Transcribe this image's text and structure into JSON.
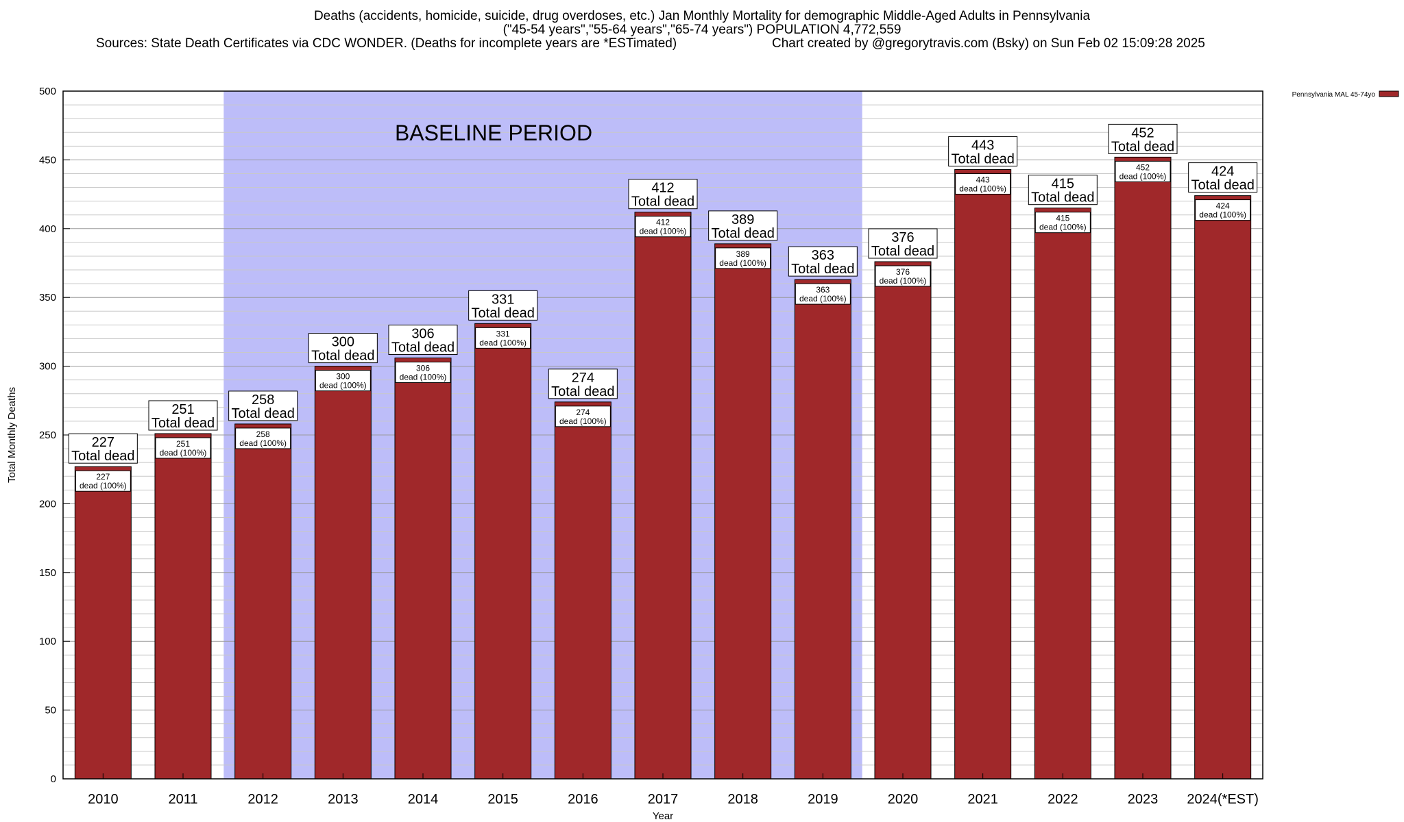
{
  "header": {
    "title_line1": "Deaths (accidents, homicide, suicide, drug overdoses, etc.) Jan Monthly Mortality for demographic Middle-Aged Adults in Pennsylvania",
    "title_line2": "(\"45-54 years\",\"55-64 years\",\"65-74 years\") POPULATION 4,772,559",
    "sources": "Sources: State Death Certificates via CDC WONDER. (Deaths for incomplete years are *ESTimated)",
    "credit": "Chart created by @gregorytravis.com (Bsky) on Sun Feb 02 15:09:28 2025"
  },
  "chart_data": {
    "type": "bar",
    "title": "Deaths (accidents, homicide, suicide, drug overdoses, etc.) Jan Monthly Mortality for demographic Middle-Aged Adults in Pennsylvania",
    "xlabel": "Year",
    "ylabel": "Total Monthly Deaths",
    "ylim": [
      0,
      500
    ],
    "yticks": [
      0,
      50,
      100,
      150,
      200,
      250,
      300,
      350,
      400,
      450,
      500
    ],
    "grid": true,
    "categories": [
      "2010",
      "2011",
      "2012",
      "2013",
      "2014",
      "2015",
      "2016",
      "2017",
      "2018",
      "2019",
      "2020",
      "2021",
      "2022",
      "2023",
      "2024(*EST)"
    ],
    "series": [
      {
        "name": "Pennsylvania MAL 45-74yo",
        "color": "#a0282a",
        "values": [
          227,
          251,
          258,
          300,
          306,
          331,
          274,
          412,
          389,
          363,
          376,
          443,
          415,
          452,
          424
        ]
      }
    ],
    "total_label": "Total dead",
    "inner_label": "dead (100%)",
    "legend": {
      "position": "top-right",
      "label": "Pennsylvania MAL 45-74yo"
    },
    "annotation": {
      "text": "BASELINE PERIOD",
      "start_category": "2012",
      "end_category": "2019",
      "color": "#bdbdf9"
    },
    "colors": {
      "bar": "#a0282a",
      "baseline_band": "#bdbdf9",
      "grid": "#c8c8c8"
    }
  }
}
